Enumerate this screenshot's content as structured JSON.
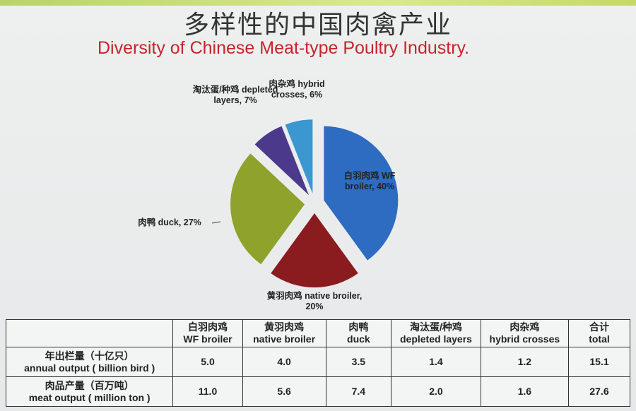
{
  "header": {
    "title": "多样性的中国肉禽产业",
    "subtitle": "Diversity of Chinese Meat-type Poultry Industry."
  },
  "chart_data": {
    "type": "pie",
    "categories": [
      "白羽肉鸡 WF broiler, 40%",
      "黄羽肉鸡 native broiler, 20%",
      "肉鸭 duck, 27%",
      "淘汰蛋/种鸡 depleted layers, 7%",
      "肉杂鸡 hybrid crosses, 6%"
    ],
    "values": [
      40,
      20,
      27,
      7,
      6
    ],
    "colors": [
      "#2d6cc0",
      "#8a1c1f",
      "#8ea22c",
      "#4b3a8c",
      "#3a97cf"
    ]
  },
  "table": {
    "header": [
      [],
      [
        "白羽肉鸡",
        "WF broiler"
      ],
      [
        "黄羽肉鸡",
        "native broiler"
      ],
      [
        "肉鸭",
        "duck"
      ],
      [
        "淘汰蛋/种鸡",
        "depleted layers"
      ],
      [
        "肉杂鸡",
        "hybrid crosses"
      ],
      [
        "合计",
        "total"
      ]
    ],
    "rows": [
      [
        [
          "年出栏量（十亿只）",
          "annual output ( billion bird )"
        ],
        "5.0",
        "4.0",
        "3.5",
        "1.4",
        "1.2",
        "15.1"
      ],
      [
        [
          "肉品产量（百万吨）",
          "meat output ( million ton )"
        ],
        "11.0",
        "5.6",
        "7.4",
        "2.0",
        "1.6",
        "27.6"
      ]
    ]
  }
}
